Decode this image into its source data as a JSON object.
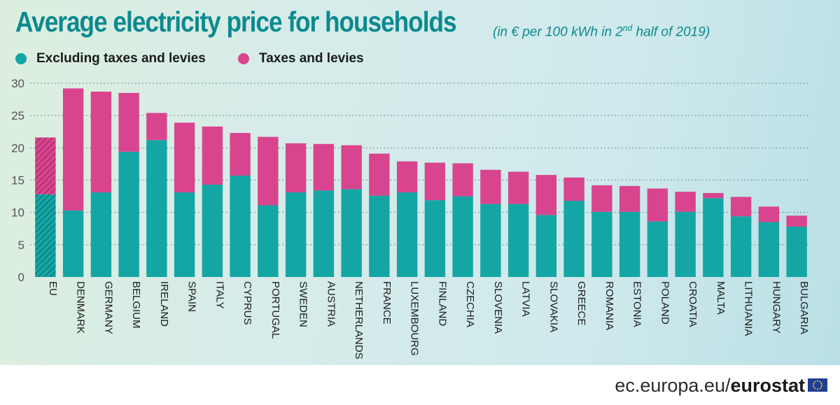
{
  "header": {
    "title": "Average electricity price for households",
    "subtitle_pre": "(in € per 100 kWh in 2",
    "subtitle_sup": "nd",
    "subtitle_post": " half of 2019)"
  },
  "legend": [
    {
      "label": "Excluding taxes and levies",
      "color": "#14a6a4"
    },
    {
      "label": "Taxes and levies",
      "color": "#d8458e"
    }
  ],
  "footer": {
    "site": "ec.europa.eu/",
    "brand": "eurostat"
  },
  "colors": {
    "base": "#14a6a4",
    "taxes": "#d8458e",
    "axis_text": "#555555",
    "title": "#0c8a8f"
  },
  "chart_data": {
    "type": "bar",
    "stacked": true,
    "grid": true,
    "ylim": [
      0,
      30
    ],
    "yticks": [
      0,
      5,
      10,
      15,
      20,
      25,
      30
    ],
    "title": "Average electricity price for households",
    "xlabel": "",
    "ylabel": "",
    "highlight_category": "EU",
    "categories": [
      "EU",
      "DENMARK",
      "GERMANY",
      "BELGIUM",
      "IRELAND",
      "SPAIN",
      "ITALY",
      "CYPRUS",
      "PORTUGAL",
      "SWEDEN",
      "AUSTRIA",
      "NETHERLANDS",
      "FRANCE",
      "LUXEMBOURG",
      "FINLAND",
      "CZECHIA",
      "SLOVENIA",
      "LATVIA",
      "SLOVAKIA",
      "GREECE",
      "ROMANIA",
      "ESTONIA",
      "POLAND",
      "CROATIA",
      "MALTA",
      "LITHUANIA",
      "HUNGARY",
      "BULGARIA"
    ],
    "series": [
      {
        "name": "Excluding taxes and levies",
        "values": [
          12.8,
          10.3,
          13.1,
          19.4,
          21.2,
          13.1,
          14.3,
          15.7,
          11.1,
          13.1,
          13.4,
          13.6,
          12.6,
          13.1,
          11.9,
          12.5,
          11.3,
          11.3,
          9.6,
          11.8,
          10.1,
          10.1,
          8.6,
          10.1,
          12.2,
          9.4,
          8.5,
          7.8
        ]
      },
      {
        "name": "Taxes and levies",
        "values": [
          8.8,
          18.9,
          15.6,
          9.1,
          4.2,
          10.8,
          9.0,
          6.6,
          10.6,
          7.6,
          7.2,
          6.8,
          6.5,
          4.8,
          5.8,
          5.1,
          5.3,
          5.0,
          6.2,
          3.6,
          4.1,
          4.0,
          5.1,
          3.1,
          0.8,
          3.0,
          2.4,
          1.7
        ]
      }
    ]
  }
}
